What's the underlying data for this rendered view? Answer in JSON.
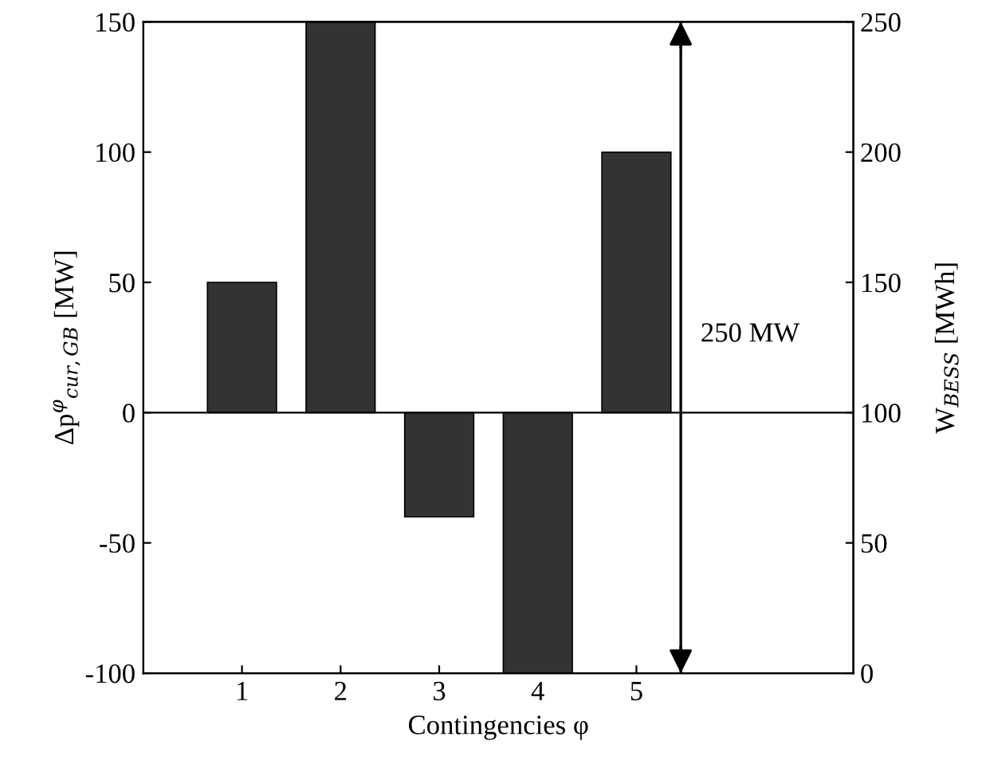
{
  "chart_data": {
    "type": "bar",
    "xlabel": "Contingencies φ",
    "ylabel": "Δp$^{φ}$$_{cur,GB}$ [MW]",
    "y2label": "W$_{BESS}$ [MWh]",
    "x": [
      1,
      2,
      3,
      4,
      5
    ],
    "values": [
      50,
      150,
      -40,
      -100,
      100
    ],
    "color": "#333333",
    "xlim": [
      0,
      7.2
    ],
    "xticks": [
      1,
      2,
      3,
      4,
      5
    ],
    "ylim": [
      -100,
      150
    ],
    "yticks": [
      -100,
      -50,
      0,
      50,
      100,
      150
    ],
    "y2lim": [
      0,
      250
    ],
    "y2ticks": [
      0,
      50,
      100,
      150,
      200,
      250
    ],
    "ref_lines": [
      {
        "axis": "y",
        "value": 0,
        "color": "#000000"
      },
      {
        "axis": "x",
        "value": 5.45,
        "label": "250 MW",
        "color": "#000000"
      }
    ],
    "grid": false,
    "legend": false
  }
}
